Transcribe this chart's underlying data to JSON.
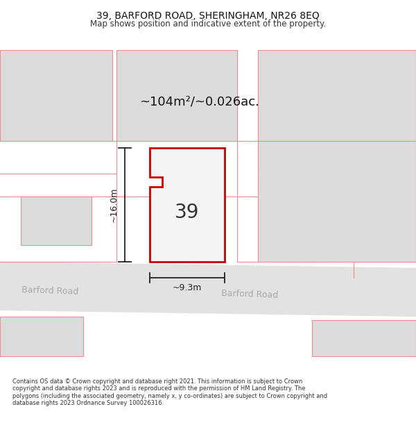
{
  "title": "39, BARFORD ROAD, SHERINGHAM, NR26 8EQ",
  "subtitle": "Map shows position and indicative extent of the property.",
  "area_label": "~104m²/~0.026ac.",
  "number_label": "39",
  "dim_height": "~16.0m",
  "dim_width": "~9.3m",
  "road_label_left": "Barford Road",
  "road_label_right": "Barford Road",
  "footer": "Contains OS data © Crown copyright and database right 2021. This information is subject to Crown copyright and database rights 2023 and is reproduced with the permission of HM Land Registry. The polygons (including the associated geometry, namely x, y co-ordinates) are subject to Crown copyright and database rights 2023 Ordnance Survey 100026316.",
  "bg_color": "#f2f2f2",
  "road_color": "#e2e2e2",
  "parcel_fill": "#dcdcdc",
  "parcel_edge": "#e89090",
  "property_fill": "#f5f5f5",
  "property_outline": "#cc0000",
  "dim_color": "#222222",
  "road_text_color": "#aaaaaa",
  "area_text_color": "#111111",
  "number_text_color": "#333333"
}
